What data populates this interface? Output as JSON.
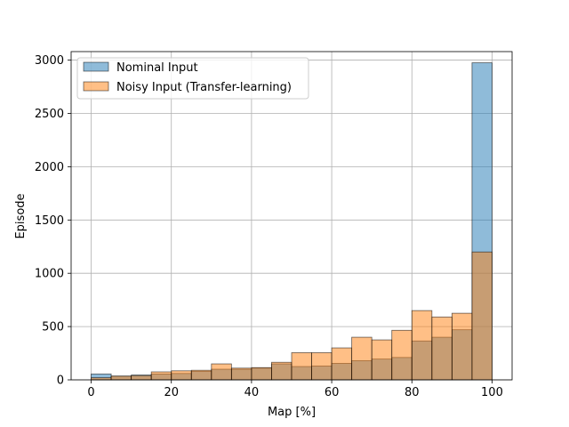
{
  "chart_data": {
    "type": "bar",
    "xlabel": "Map [%]",
    "ylabel": "Episode",
    "xlim": [
      -5,
      105
    ],
    "ylim": [
      0,
      3080
    ],
    "xticks": [
      0,
      20,
      40,
      60,
      80,
      100
    ],
    "yticks": [
      0,
      500,
      1000,
      1500,
      2000,
      2500,
      3000
    ],
    "grid": true,
    "legend_position": "top-left",
    "bin_edges": [
      0,
      5,
      10,
      15,
      20,
      25,
      30,
      35,
      40,
      45,
      50,
      55,
      60,
      65,
      70,
      75,
      80,
      85,
      90,
      95,
      100
    ],
    "series": [
      {
        "name": "Nominal Input",
        "color": "#1f77b4",
        "values": [
          55,
          35,
          45,
          55,
          60,
          80,
          100,
          100,
          110,
          150,
          125,
          130,
          155,
          180,
          195,
          210,
          365,
          400,
          470,
          2975
        ]
      },
      {
        "name": "Noisy Input (Transfer-learning)",
        "color": "#ff7f0e",
        "values": [
          20,
          35,
          40,
          75,
          85,
          90,
          150,
          110,
          115,
          165,
          255,
          255,
          300,
          400,
          375,
          465,
          650,
          590,
          625,
          1200
        ]
      }
    ]
  }
}
